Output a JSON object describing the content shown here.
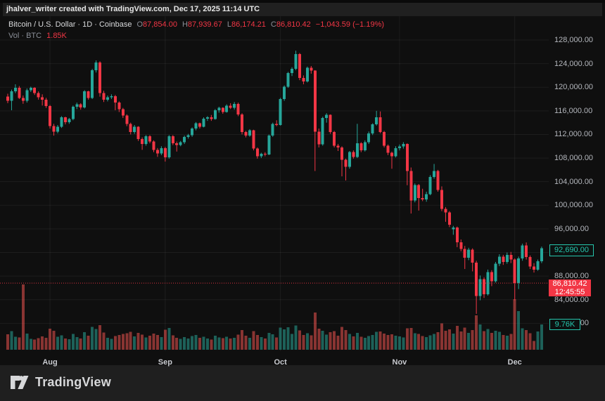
{
  "attribution": "jhalver_writer created with TradingView.com, Dec 17, 2025 11:14 UTC",
  "legend": {
    "symbol_line": "Bitcoin / U.S. Dollar · 1D · Coinbase",
    "o_prefix": "O",
    "o": "87,854.00",
    "h_prefix": "H",
    "h": "87,939.67",
    "l_prefix": "L",
    "l": "86,174.21",
    "c_prefix": "C",
    "c": "86,810.42",
    "change": "−1,043.59 (−1.19%)",
    "vol_label": "Vol · BTC",
    "vol_value": "1.85K"
  },
  "price_labels": {
    "last_close": {
      "text": "92,690.00",
      "value": 92690
    },
    "current": {
      "text": "86,810.42",
      "countdown": "12:45:55",
      "value": 86810.42
    },
    "volume": {
      "text": "9.76K",
      "value": 9760
    }
  },
  "footer": {
    "brand": "TradingView"
  },
  "colors": {
    "up": "#26a69a",
    "down": "#f23645",
    "vol_up": "rgba(42,166,152,0.55)",
    "vol_down": "rgba(239,83,80,0.55)",
    "label_green": "#26c6ad",
    "label_red_bg": "#f23645",
    "grid": "rgba(255,255,255,0.06)",
    "dotted_line": "#f23645"
  },
  "chart_data": {
    "type": "candlestick",
    "title": "Bitcoin / U.S. Dollar",
    "interval": "1D",
    "exchange": "Coinbase",
    "ohlc_display": {
      "open": 87854.0,
      "high": 87939.67,
      "low": 86174.21,
      "close": 86810.42,
      "change": -1043.59,
      "change_pct": -1.19
    },
    "volume_display_btc": 1850,
    "last_close_label": 92690.0,
    "current_price_line": 86810.42,
    "last_volume_label_btc": 9760,
    "ylabel": "Price (USD)",
    "ylim": [
      80000,
      128000
    ],
    "price_ticks": [
      128000,
      124000,
      120000,
      116000,
      112000,
      108000,
      104000,
      100000,
      96000,
      92000,
      88000,
      84000,
      80000
    ],
    "price_tick_labels": [
      "128,000.00",
      "124,000.00",
      "120,000.00",
      "116,000.00",
      "112,000.00",
      "108,000.00",
      "104,000.00",
      "100,000.00",
      "96,000.00",
      "92,000.00",
      "88,000.00",
      "84,000.00",
      "80,000.00"
    ],
    "months": [
      {
        "label": "Aug",
        "index": 11
      },
      {
        "label": "Sep",
        "index": 41
      },
      {
        "label": "Oct",
        "index": 71
      },
      {
        "label": "Nov",
        "index": 102
      },
      {
        "label": "Dec",
        "index": 132
      }
    ],
    "grid": true,
    "legend_position": "top-left",
    "candles_format": [
      "open",
      "high",
      "low",
      "close",
      "volume_btc"
    ],
    "candles": [
      [
        118400,
        118900,
        117300,
        117700,
        6000
      ],
      [
        117700,
        119600,
        116100,
        119300,
        7200
      ],
      [
        119300,
        120500,
        119000,
        119900,
        5100
      ],
      [
        119900,
        120200,
        118000,
        118200,
        4800
      ],
      [
        118200,
        118600,
        117200,
        117700,
        25400
      ],
      [
        117700,
        119800,
        117400,
        119500,
        6300
      ],
      [
        119500,
        120100,
        119200,
        119900,
        4200
      ],
      [
        119900,
        120000,
        118700,
        119000,
        3900
      ],
      [
        119000,
        119300,
        117900,
        118300,
        4500
      ],
      [
        118300,
        118800,
        116900,
        117900,
        5200
      ],
      [
        117900,
        118200,
        116500,
        116800,
        4700
      ],
      [
        116800,
        117000,
        113000,
        113400,
        8200
      ],
      [
        113400,
        113800,
        111800,
        112500,
        7400
      ],
      [
        112500,
        113600,
        112200,
        113300,
        5000
      ],
      [
        113300,
        115100,
        113100,
        114900,
        5600
      ],
      [
        114900,
        115000,
        113700,
        114100,
        4400
      ],
      [
        114100,
        114800,
        113800,
        114600,
        4100
      ],
      [
        114600,
        116900,
        114400,
        116700,
        6200
      ],
      [
        116700,
        117400,
        116300,
        117100,
        4900
      ],
      [
        117100,
        117300,
        116200,
        116600,
        4300
      ],
      [
        116600,
        119500,
        116400,
        119300,
        6800
      ],
      [
        119300,
        119400,
        117900,
        118200,
        5400
      ],
      [
        118200,
        123100,
        118000,
        122900,
        8900
      ],
      [
        122900,
        124550,
        122500,
        124200,
        8000
      ],
      [
        124200,
        124400,
        118400,
        119000,
        9600
      ],
      [
        119000,
        119400,
        117500,
        117900,
        6700
      ],
      [
        117900,
        118600,
        117600,
        118300,
        4600
      ],
      [
        118300,
        118800,
        118000,
        118500,
        4200
      ],
      [
        118500,
        118700,
        116100,
        117400,
        5300
      ],
      [
        117400,
        117600,
        115800,
        116300,
        5800
      ],
      [
        116300,
        116500,
        114800,
        115200,
        6100
      ],
      [
        115200,
        115400,
        113400,
        113800,
        6400
      ],
      [
        113800,
        114000,
        112000,
        112400,
        7000
      ],
      [
        112400,
        113600,
        112100,
        113300,
        5200
      ],
      [
        113300,
        113400,
        110900,
        111200,
        6600
      ],
      [
        111200,
        111500,
        109400,
        110400,
        5900
      ],
      [
        110400,
        111900,
        110100,
        111700,
        4800
      ],
      [
        111700,
        111900,
        110500,
        110800,
        5500
      ],
      [
        110800,
        111000,
        109000,
        109400,
        6300
      ],
      [
        109400,
        109700,
        108200,
        108800,
        5700
      ],
      [
        108800,
        110000,
        108500,
        109700,
        4900
      ],
      [
        109700,
        109900,
        107400,
        108100,
        7800
      ],
      [
        108100,
        111900,
        107900,
        111700,
        8400
      ],
      [
        111700,
        111900,
        110200,
        110500,
        5600
      ],
      [
        110500,
        110800,
        109100,
        110200,
        4700
      ],
      [
        110200,
        110900,
        110000,
        110700,
        4200
      ],
      [
        110700,
        111800,
        110400,
        111600,
        4900
      ],
      [
        111600,
        112100,
        111300,
        111900,
        4400
      ],
      [
        111900,
        113200,
        111600,
        113000,
        5300
      ],
      [
        113000,
        114100,
        112700,
        113900,
        5800
      ],
      [
        113900,
        114000,
        113000,
        113300,
        4600
      ],
      [
        113300,
        114900,
        113200,
        114700,
        5100
      ],
      [
        114700,
        115100,
        114300,
        114900,
        4300
      ],
      [
        114900,
        115300,
        114300,
        114600,
        4000
      ],
      [
        114600,
        116300,
        114500,
        116100,
        5500
      ],
      [
        116100,
        116700,
        115700,
        116500,
        4800
      ],
      [
        116500,
        116600,
        115500,
        115800,
        4500
      ],
      [
        115800,
        117100,
        115700,
        116900,
        5000
      ],
      [
        116900,
        117300,
        116300,
        116500,
        4400
      ],
      [
        116500,
        117500,
        116200,
        117200,
        4700
      ],
      [
        117200,
        117400,
        115100,
        115400,
        5900
      ],
      [
        115400,
        115600,
        112000,
        112400,
        7600
      ],
      [
        112400,
        112600,
        111500,
        111800,
        5400
      ],
      [
        111800,
        112900,
        111600,
        112700,
        4600
      ],
      [
        112700,
        112800,
        109300,
        109600,
        7200
      ],
      [
        109600,
        109800,
        107900,
        108300,
        5800
      ],
      [
        108300,
        108900,
        108000,
        108700,
        4900
      ],
      [
        108700,
        109000,
        108300,
        108600,
        4300
      ],
      [
        108600,
        112000,
        108500,
        111800,
        6500
      ],
      [
        111800,
        114000,
        111600,
        113800,
        6000
      ],
      [
        113800,
        114400,
        113400,
        113600,
        4800
      ],
      [
        113600,
        118200,
        113500,
        118000,
        8600
      ],
      [
        118000,
        120300,
        117700,
        120100,
        7900
      ],
      [
        120100,
        122600,
        119900,
        122400,
        8800
      ],
      [
        122400,
        123400,
        121900,
        123100,
        6200
      ],
      [
        123100,
        126200,
        122900,
        125600,
        9400
      ],
      [
        125600,
        125800,
        121200,
        121600,
        7500
      ],
      [
        121600,
        122000,
        120500,
        121000,
        5800
      ],
      [
        121000,
        123500,
        120800,
        123300,
        6400
      ],
      [
        123300,
        123600,
        122300,
        122800,
        5600
      ],
      [
        122800,
        122900,
        105800,
        112500,
        14500
      ],
      [
        112500,
        113000,
        109800,
        110300,
        8200
      ],
      [
        110300,
        115000,
        110100,
        114800,
        7400
      ],
      [
        114800,
        115600,
        114000,
        115300,
        5900
      ],
      [
        115300,
        115400,
        112100,
        112400,
        6800
      ],
      [
        112400,
        112600,
        109800,
        110100,
        7200
      ],
      [
        110100,
        110400,
        109200,
        109800,
        5400
      ],
      [
        109800,
        110000,
        104900,
        107700,
        8900
      ],
      [
        107700,
        107900,
        104200,
        106500,
        7600
      ],
      [
        106500,
        109200,
        106200,
        109000,
        6100
      ],
      [
        109000,
        109300,
        107900,
        108200,
        5200
      ],
      [
        108200,
        113800,
        108000,
        110500,
        6600
      ],
      [
        110500,
        110700,
        109000,
        109300,
        5000
      ],
      [
        109300,
        111000,
        109100,
        110700,
        4700
      ],
      [
        110700,
        112500,
        110400,
        112200,
        5300
      ],
      [
        112200,
        113900,
        111900,
        113700,
        5800
      ],
      [
        113700,
        116000,
        113500,
        114900,
        6900
      ],
      [
        114900,
        115900,
        112200,
        112400,
        7100
      ],
      [
        112400,
        112600,
        109800,
        110100,
        6300
      ],
      [
        110100,
        110300,
        108500,
        108900,
        5700
      ],
      [
        108900,
        109100,
        106200,
        108300,
        6000
      ],
      [
        108300,
        110000,
        108100,
        109700,
        5500
      ],
      [
        109700,
        110300,
        109300,
        110000,
        5200
      ],
      [
        110000,
        110700,
        109600,
        110400,
        4800
      ],
      [
        110400,
        110500,
        103400,
        105800,
        8300
      ],
      [
        105800,
        106400,
        98600,
        100800,
        8500
      ],
      [
        100800,
        103700,
        100500,
        103400,
        6400
      ],
      [
        103400,
        103600,
        99100,
        101200,
        6100
      ],
      [
        101200,
        102800,
        100700,
        101000,
        5300
      ],
      [
        101000,
        102300,
        100600,
        101900,
        4900
      ],
      [
        101900,
        105100,
        101700,
        104800,
        5600
      ],
      [
        104800,
        107000,
        104500,
        105800,
        6200
      ],
      [
        105800,
        106000,
        102300,
        102600,
        6800
      ],
      [
        102600,
        103200,
        99000,
        99400,
        10200
      ],
      [
        99400,
        99700,
        97200,
        98800,
        7400
      ],
      [
        98800,
        99000,
        96300,
        96700,
        7900
      ],
      [
        95900,
        96500,
        95000,
        96200,
        6300
      ],
      [
        96200,
        96400,
        92900,
        93700,
        9300
      ],
      [
        93700,
        94200,
        92200,
        92600,
        7100
      ],
      [
        92600,
        93100,
        89200,
        91100,
        8600
      ],
      [
        91100,
        92800,
        90700,
        92500,
        6500
      ],
      [
        92500,
        92700,
        88800,
        90300,
        7700
      ],
      [
        90300,
        90600,
        81600,
        84600,
        13400
      ],
      [
        84600,
        88100,
        83900,
        87500,
        9800
      ],
      [
        87500,
        87800,
        84300,
        84900,
        7200
      ],
      [
        84900,
        89100,
        84700,
        88700,
        8100
      ],
      [
        88700,
        89000,
        86300,
        87100,
        6600
      ],
      [
        87100,
        90400,
        86900,
        90100,
        7400
      ],
      [
        90100,
        91700,
        89700,
        91300,
        6900
      ],
      [
        91300,
        91600,
        89900,
        90400,
        5800
      ],
      [
        90400,
        92000,
        90100,
        91600,
        5400
      ],
      [
        91600,
        92100,
        90200,
        90800,
        6100
      ],
      [
        90800,
        91000,
        83900,
        86800,
        19700
      ],
      [
        86800,
        91300,
        85800,
        91000,
        15000
      ],
      [
        91000,
        93500,
        90600,
        93200,
        8300
      ],
      [
        93200,
        93700,
        90800,
        91200,
        7600
      ],
      [
        91200,
        91500,
        89200,
        89600,
        6400
      ],
      [
        89600,
        90200,
        88600,
        89100,
        3400
      ],
      [
        89100,
        90800,
        88900,
        90500,
        7100
      ],
      [
        90500,
        93000,
        90200,
        92690,
        9760
      ]
    ]
  }
}
